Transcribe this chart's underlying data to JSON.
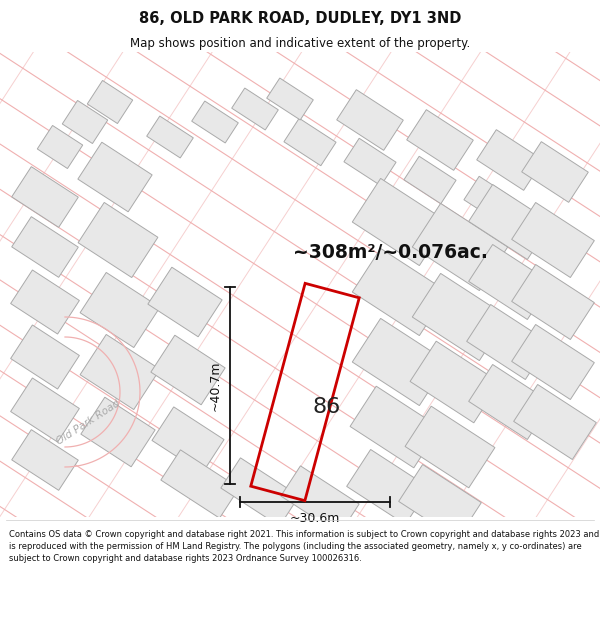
{
  "title_line1": "86, OLD PARK ROAD, DUDLEY, DY1 3ND",
  "title_line2": "Map shows position and indicative extent of the property.",
  "area_text": "~308m²/~0.076ac.",
  "number_label": "86",
  "dim_width": "~30.6m",
  "dim_height": "~40.7m",
  "road_label": "Old Park Road",
  "footer_text": "Contains OS data © Crown copyright and database right 2021. This information is subject to Crown copyright and database rights 2023 and is reproduced with the permission of HM Land Registry. The polygons (including the associated geometry, namely x, y co-ordinates) are subject to Crown copyright and database rights 2023 Ordnance Survey 100026316.",
  "bg_color": "#ffffff",
  "map_bg": "#ffffff",
  "building_fill": "#e8e8e8",
  "building_stroke": "#aaaaaa",
  "road_line_color": "#f0b0b0",
  "highlight_stroke": "#cc0000",
  "dim_line_color": "#111111",
  "title_color": "#111111",
  "footer_color": "#111111",
  "figsize": [
    6.0,
    6.25
  ],
  "dpi": 100
}
